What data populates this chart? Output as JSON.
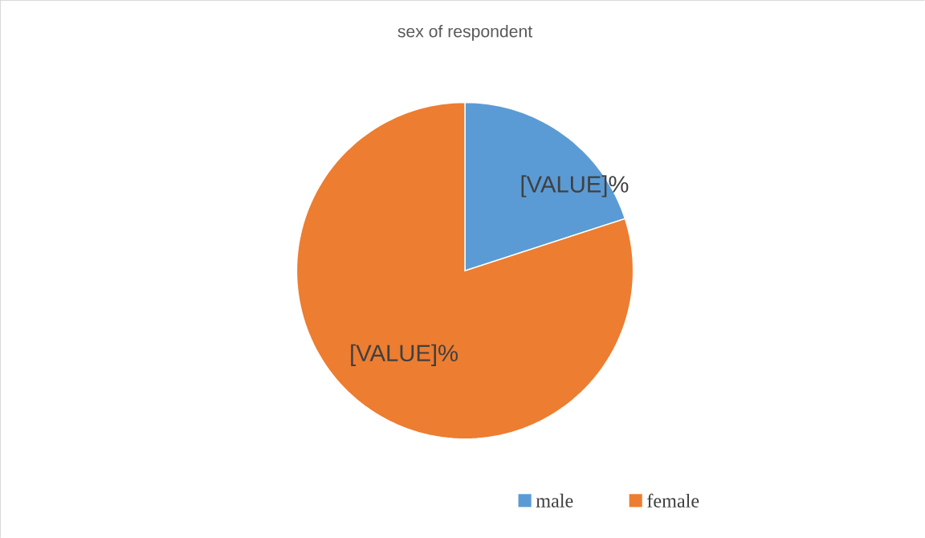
{
  "chart_data": {
    "type": "pie",
    "title": "sex of respondent",
    "categories": [
      "male",
      "female"
    ],
    "values": [
      20,
      80
    ],
    "colors": [
      "#5b9bd5",
      "#ed7d31"
    ],
    "value_labels": [
      "[VALUE]%",
      "[VALUE]%"
    ],
    "legend": "bottom"
  }
}
